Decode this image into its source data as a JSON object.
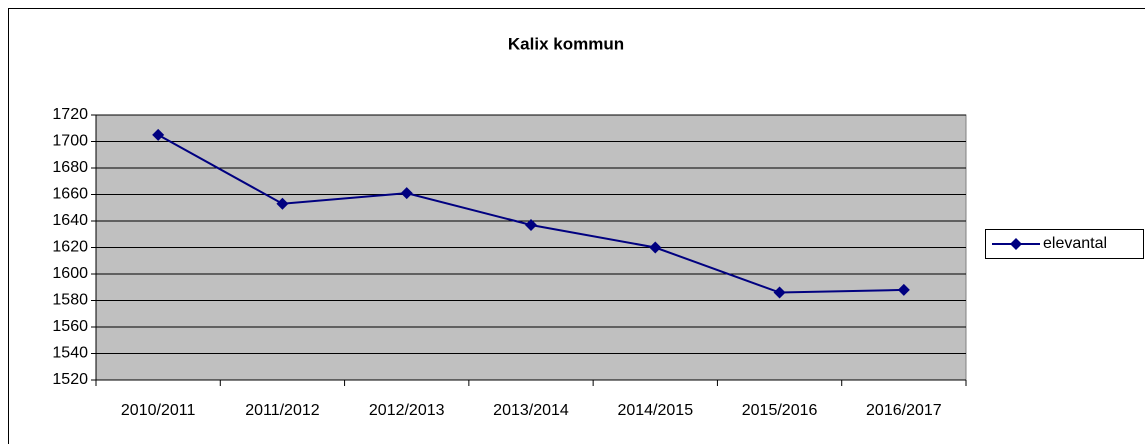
{
  "chart_data": {
    "type": "line",
    "title": "Kalix kommun",
    "categories": [
      "2010/2011",
      "2011/2012",
      "2012/2013",
      "2013/2014",
      "2014/2015",
      "2015/2016",
      "2016/2017"
    ],
    "series": [
      {
        "name": "elevantal",
        "color": "#000080",
        "values": [
          1705,
          1653,
          1661,
          1637,
          1620,
          1586,
          1588
        ]
      }
    ],
    "ylim": [
      1520,
      1720
    ],
    "yticks": [
      1520,
      1540,
      1560,
      1580,
      1600,
      1620,
      1640,
      1660,
      1680,
      1700,
      1720
    ],
    "grid": true,
    "legend": "right"
  }
}
